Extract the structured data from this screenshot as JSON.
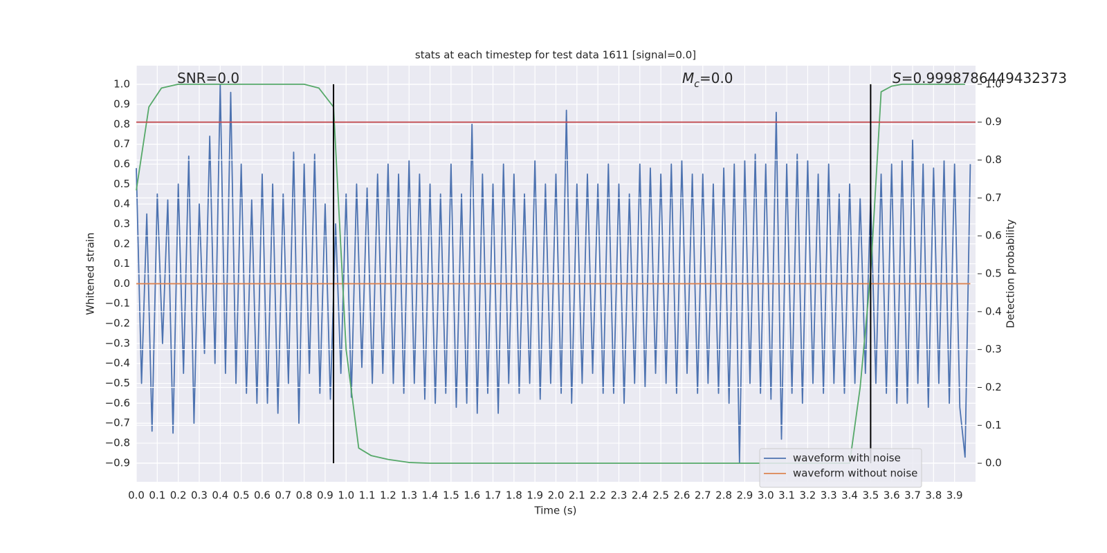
{
  "chart_data": {
    "type": "line",
    "title": "stats at each timestep for test data 1611 [signal=0.0]",
    "xlabel": "Time (s)",
    "ylabel": "Whitened strain",
    "y2label": "Detection probability",
    "annotations": [
      [
        "SNR=0.0"
      ],
      [
        "M",
        "c",
        "=0.0"
      ],
      [
        "S",
        "=0.9998786449432373"
      ]
    ],
    "xlim": [
      0,
      4.0
    ],
    "ylim": [
      -0.994,
      1.094
    ],
    "y2lim": [
      -0.049,
      1.049
    ],
    "xticks": [
      {
        "value": 0,
        "label": "0.0"
      },
      0.1,
      0.2,
      0.3,
      0.4,
      0.5,
      0.6,
      0.7,
      0.8,
      0.9,
      {
        "value": 1,
        "label": "1.0"
      },
      1.1,
      1.2,
      1.3,
      1.4,
      1.5,
      1.6,
      1.7,
      1.8,
      1.9,
      {
        "value": 2,
        "label": "2.0"
      },
      2.1,
      2.2,
      2.3,
      2.4,
      2.5,
      2.6,
      2.7,
      2.8,
      2.9,
      {
        "value": 3,
        "label": "3.0"
      },
      3.1,
      3.2,
      3.3,
      3.4,
      3.5,
      3.6,
      3.7,
      3.8,
      3.9
    ],
    "yticks": [
      {
        "value": 1,
        "label": "1.0"
      },
      0.9,
      0.8,
      0.7,
      0.6,
      0.5,
      0.4,
      0.3,
      0.2,
      0.1,
      {
        "value": 0,
        "label": "0.0"
      },
      {
        "value": -0.1,
        "label": "−0.1"
      },
      {
        "value": -0.2,
        "label": "−0.2"
      },
      {
        "value": -0.3,
        "label": "−0.3"
      },
      {
        "value": -0.4,
        "label": "−0.4"
      },
      {
        "value": -0.5,
        "label": "−0.5"
      },
      {
        "value": -0.6,
        "label": "−0.6"
      },
      {
        "value": -0.7,
        "label": "−0.7"
      },
      {
        "value": -0.8,
        "label": "−0.8"
      },
      {
        "value": -0.9,
        "label": "−0.9"
      }
    ],
    "y2ticks": [
      {
        "value": 1,
        "label": "1.0"
      },
      0.9,
      0.8,
      0.7,
      0.6,
      0.5,
      0.4,
      0.3,
      0.2,
      0.1,
      {
        "value": 0,
        "label": "0.0"
      }
    ],
    "grid": true,
    "legend": "lower right",
    "series": [
      {
        "name": "waveform with noise",
        "color": "#4c72b0",
        "x": [
          0,
          0.025,
          0.05,
          0.075,
          0.1,
          0.125,
          0.15,
          0.175,
          0.2,
          0.225,
          0.25,
          0.275,
          0.3,
          0.325,
          0.35,
          0.375,
          0.4,
          0.425,
          0.45,
          0.475,
          0.5,
          0.525,
          0.55,
          0.575,
          0.6,
          0.625,
          0.65,
          0.675,
          0.7,
          0.725,
          0.75,
          0.775,
          0.8,
          0.825,
          0.85,
          0.875,
          0.9,
          0.925,
          0.95,
          0.975,
          1,
          1.025,
          1.05,
          1.075,
          1.1,
          1.125,
          1.15,
          1.175,
          1.2,
          1.225,
          1.25,
          1.275,
          1.3,
          1.325,
          1.35,
          1.375,
          1.4,
          1.425,
          1.45,
          1.475,
          1.5,
          1.525,
          1.55,
          1.575,
          1.6,
          1.625,
          1.65,
          1.675,
          1.7,
          1.725,
          1.75,
          1.775,
          1.8,
          1.825,
          1.85,
          1.875,
          1.9,
          1.925,
          1.95,
          1.975,
          2,
          2.025,
          2.05,
          2.075,
          2.1,
          2.125,
          2.15,
          2.175,
          2.2,
          2.225,
          2.25,
          2.275,
          2.3,
          2.325,
          2.35,
          2.375,
          2.4,
          2.425,
          2.45,
          2.475,
          2.5,
          2.525,
          2.55,
          2.575,
          2.6,
          2.625,
          2.65,
          2.675,
          2.7,
          2.725,
          2.75,
          2.775,
          2.8,
          2.825,
          2.85,
          2.875,
          2.9,
          2.925,
          2.95,
          2.975,
          3,
          3.025,
          3.05,
          3.075,
          3.1,
          3.125,
          3.15,
          3.175,
          3.2,
          3.225,
          3.25,
          3.275,
          3.3,
          3.325,
          3.35,
          3.375,
          3.4,
          3.425,
          3.45,
          3.475,
          3.5,
          3.525,
          3.55,
          3.575,
          3.6,
          3.625,
          3.65,
          3.675,
          3.7,
          3.725,
          3.75,
          3.775,
          3.8,
          3.825,
          3.85,
          3.875,
          3.9,
          3.925,
          3.95,
          3.975
        ],
        "values": [
          0.58,
          -0.5,
          0.35,
          -0.74,
          0.45,
          -0.3,
          0.42,
          -0.75,
          0.5,
          -0.45,
          0.64,
          -0.7,
          0.4,
          -0.35,
          0.74,
          -0.4,
          1.0,
          -0.45,
          0.96,
          -0.5,
          0.6,
          -0.55,
          0.42,
          -0.6,
          0.55,
          -0.6,
          0.5,
          -0.65,
          0.45,
          -0.5,
          0.66,
          -0.7,
          0.6,
          -0.45,
          0.65,
          -0.55,
          0.4,
          -0.58,
          0.3,
          -0.45,
          0.45,
          -0.57,
          0.5,
          -0.42,
          0.48,
          -0.5,
          0.55,
          -0.45,
          0.6,
          -0.5,
          0.55,
          -0.55,
          0.62,
          -0.5,
          0.55,
          -0.58,
          0.5,
          -0.6,
          0.45,
          -0.55,
          0.6,
          -0.62,
          0.45,
          -0.6,
          0.8,
          -0.65,
          0.55,
          -0.55,
          0.5,
          -0.65,
          0.6,
          -0.5,
          0.55,
          -0.55,
          0.45,
          -0.5,
          0.62,
          -0.58,
          0.5,
          -0.5,
          0.55,
          -0.55,
          0.87,
          -0.6,
          0.5,
          -0.5,
          0.55,
          -0.45,
          0.5,
          -0.55,
          0.6,
          -0.55,
          0.5,
          -0.6,
          0.45,
          -0.5,
          0.6,
          -0.52,
          0.58,
          -0.45,
          0.55,
          -0.5,
          0.6,
          -0.55,
          0.62,
          -0.45,
          0.55,
          -0.55,
          0.55,
          -0.5,
          0.5,
          -0.55,
          0.58,
          -0.6,
          0.6,
          -0.9,
          0.62,
          -0.5,
          0.65,
          -0.55,
          0.6,
          -0.58,
          0.86,
          -0.78,
          0.6,
          -0.55,
          0.65,
          -0.6,
          0.62,
          -0.5,
          0.55,
          -0.55,
          0.6,
          -0.5,
          0.45,
          -0.55,
          0.5,
          -0.5,
          0.43,
          -0.45,
          0.43,
          -0.5,
          0.55,
          -0.55,
          0.6,
          -0.6,
          0.62,
          -0.6,
          0.72,
          -0.5,
          0.6,
          -0.62,
          0.58,
          -0.5,
          0.62,
          -0.6,
          0.6,
          -0.62,
          -0.87,
          0.6
        ]
      },
      {
        "name": "waveform without noise",
        "color": "#dd8452",
        "x": [
          0,
          3.975
        ],
        "values": [
          0,
          0
        ]
      },
      {
        "color": "#55a868",
        "axis": "y2",
        "x": [
          0,
          0.06,
          0.12,
          0.2,
          0.8,
          0.87,
          0.94,
          1.0,
          1.06,
          1.12,
          1.2,
          1.3,
          1.4,
          3.4,
          3.45,
          3.5,
          3.55,
          3.6,
          3.65,
          3.95
        ],
        "values": [
          0.72,
          0.94,
          0.99,
          1.0,
          1.0,
          0.99,
          0.94,
          0.3,
          0.04,
          0.02,
          0.01,
          0.002,
          0.0,
          0.0,
          0.2,
          0.5,
          0.98,
          0.995,
          1.0,
          1.0
        ]
      }
    ],
    "hlines": [
      {
        "y": 0.9,
        "axis": "y2",
        "color": "#c44e52"
      }
    ],
    "vlines": [
      {
        "x": 0.94,
        "ymin": 0,
        "ymax": 1,
        "axis": "y2",
        "color": "#000000"
      },
      {
        "x": 3.5,
        "ymin": 0,
        "ymax": 1,
        "axis": "y2",
        "color": "#000000"
      }
    ]
  }
}
